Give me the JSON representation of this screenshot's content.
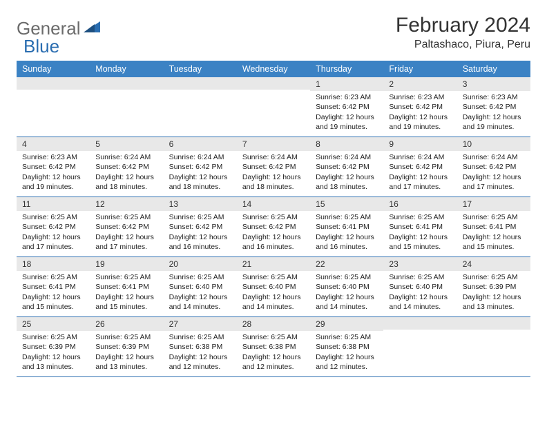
{
  "logo": {
    "text1": "General",
    "text2": "Blue"
  },
  "title": "February 2024",
  "location": "Paltashaco, Piura, Peru",
  "colors": {
    "header_bg": "#3b82c4",
    "header_text": "#ffffff",
    "row_divider": "#2a6db0",
    "daynum_bg": "#e8e8e8",
    "logo_gray": "#6b6b6b",
    "logo_blue": "#2a6db0"
  },
  "day_names": [
    "Sunday",
    "Monday",
    "Tuesday",
    "Wednesday",
    "Thursday",
    "Friday",
    "Saturday"
  ],
  "weeks": [
    [
      {
        "empty": true
      },
      {
        "empty": true
      },
      {
        "empty": true
      },
      {
        "empty": true
      },
      {
        "num": "1",
        "sunrise": "6:23 AM",
        "sunset": "6:42 PM",
        "daylight": "12 hours and 19 minutes."
      },
      {
        "num": "2",
        "sunrise": "6:23 AM",
        "sunset": "6:42 PM",
        "daylight": "12 hours and 19 minutes."
      },
      {
        "num": "3",
        "sunrise": "6:23 AM",
        "sunset": "6:42 PM",
        "daylight": "12 hours and 19 minutes."
      }
    ],
    [
      {
        "num": "4",
        "sunrise": "6:23 AM",
        "sunset": "6:42 PM",
        "daylight": "12 hours and 19 minutes."
      },
      {
        "num": "5",
        "sunrise": "6:24 AM",
        "sunset": "6:42 PM",
        "daylight": "12 hours and 18 minutes."
      },
      {
        "num": "6",
        "sunrise": "6:24 AM",
        "sunset": "6:42 PM",
        "daylight": "12 hours and 18 minutes."
      },
      {
        "num": "7",
        "sunrise": "6:24 AM",
        "sunset": "6:42 PM",
        "daylight": "12 hours and 18 minutes."
      },
      {
        "num": "8",
        "sunrise": "6:24 AM",
        "sunset": "6:42 PM",
        "daylight": "12 hours and 18 minutes."
      },
      {
        "num": "9",
        "sunrise": "6:24 AM",
        "sunset": "6:42 PM",
        "daylight": "12 hours and 17 minutes."
      },
      {
        "num": "10",
        "sunrise": "6:24 AM",
        "sunset": "6:42 PM",
        "daylight": "12 hours and 17 minutes."
      }
    ],
    [
      {
        "num": "11",
        "sunrise": "6:25 AM",
        "sunset": "6:42 PM",
        "daylight": "12 hours and 17 minutes."
      },
      {
        "num": "12",
        "sunrise": "6:25 AM",
        "sunset": "6:42 PM",
        "daylight": "12 hours and 17 minutes."
      },
      {
        "num": "13",
        "sunrise": "6:25 AM",
        "sunset": "6:42 PM",
        "daylight": "12 hours and 16 minutes."
      },
      {
        "num": "14",
        "sunrise": "6:25 AM",
        "sunset": "6:42 PM",
        "daylight": "12 hours and 16 minutes."
      },
      {
        "num": "15",
        "sunrise": "6:25 AM",
        "sunset": "6:41 PM",
        "daylight": "12 hours and 16 minutes."
      },
      {
        "num": "16",
        "sunrise": "6:25 AM",
        "sunset": "6:41 PM",
        "daylight": "12 hours and 15 minutes."
      },
      {
        "num": "17",
        "sunrise": "6:25 AM",
        "sunset": "6:41 PM",
        "daylight": "12 hours and 15 minutes."
      }
    ],
    [
      {
        "num": "18",
        "sunrise": "6:25 AM",
        "sunset": "6:41 PM",
        "daylight": "12 hours and 15 minutes."
      },
      {
        "num": "19",
        "sunrise": "6:25 AM",
        "sunset": "6:41 PM",
        "daylight": "12 hours and 15 minutes."
      },
      {
        "num": "20",
        "sunrise": "6:25 AM",
        "sunset": "6:40 PM",
        "daylight": "12 hours and 14 minutes."
      },
      {
        "num": "21",
        "sunrise": "6:25 AM",
        "sunset": "6:40 PM",
        "daylight": "12 hours and 14 minutes."
      },
      {
        "num": "22",
        "sunrise": "6:25 AM",
        "sunset": "6:40 PM",
        "daylight": "12 hours and 14 minutes."
      },
      {
        "num": "23",
        "sunrise": "6:25 AM",
        "sunset": "6:40 PM",
        "daylight": "12 hours and 14 minutes."
      },
      {
        "num": "24",
        "sunrise": "6:25 AM",
        "sunset": "6:39 PM",
        "daylight": "12 hours and 13 minutes."
      }
    ],
    [
      {
        "num": "25",
        "sunrise": "6:25 AM",
        "sunset": "6:39 PM",
        "daylight": "12 hours and 13 minutes."
      },
      {
        "num": "26",
        "sunrise": "6:25 AM",
        "sunset": "6:39 PM",
        "daylight": "12 hours and 13 minutes."
      },
      {
        "num": "27",
        "sunrise": "6:25 AM",
        "sunset": "6:38 PM",
        "daylight": "12 hours and 12 minutes."
      },
      {
        "num": "28",
        "sunrise": "6:25 AM",
        "sunset": "6:38 PM",
        "daylight": "12 hours and 12 minutes."
      },
      {
        "num": "29",
        "sunrise": "6:25 AM",
        "sunset": "6:38 PM",
        "daylight": "12 hours and 12 minutes."
      },
      {
        "empty": true
      },
      {
        "empty": true
      }
    ]
  ],
  "labels": {
    "sunrise": "Sunrise:",
    "sunset": "Sunset:",
    "daylight": "Daylight:"
  }
}
